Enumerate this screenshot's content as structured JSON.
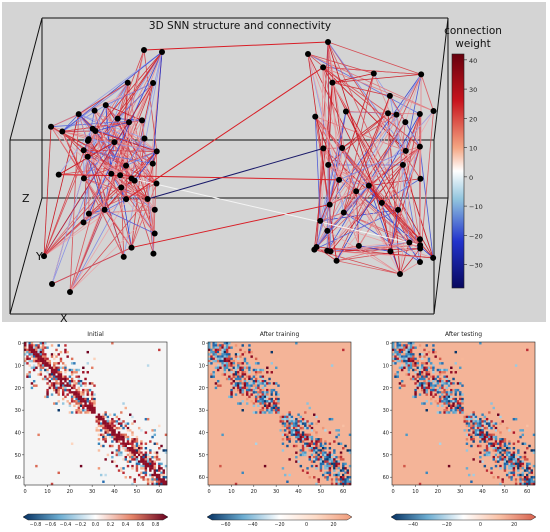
{
  "title": "3D SNN structure and connectivity",
  "colorbar_title": [
    "connection",
    "weight"
  ],
  "axis_letters": {
    "x": "X",
    "y": "Y",
    "z": "Z"
  },
  "colors": {
    "panel_bg": "#d4d4d4",
    "neuron": "#000000",
    "positive": "#c8141e",
    "negative": "#2233cc",
    "neutral": "#ffffff"
  },
  "chart_data": [
    {
      "type": "network-3d",
      "title": "3D SNN structure and connectivity",
      "colorbar": {
        "label": "connection weight",
        "range": [
          -38,
          42
        ],
        "ticks": [
          40,
          30,
          20,
          10,
          0,
          -10,
          -20,
          -30
        ]
      },
      "modules": 2
    },
    {
      "type": "heatmap",
      "title": "Initial",
      "size": 64,
      "xticks": [
        0,
        10,
        20,
        30,
        40,
        50,
        60
      ],
      "yticks": [
        0,
        10,
        20,
        30,
        40,
        50,
        60
      ],
      "colorbar": {
        "range": [
          -0.9,
          0.9
        ],
        "ticks": [
          "−0.8",
          "−0.6",
          "−0.4",
          "−0.2",
          "0.0",
          "0.2",
          "0.4",
          "0.6",
          "0.8"
        ]
      }
    },
    {
      "type": "heatmap",
      "title": "After training",
      "size": 64,
      "xticks": [
        0,
        10,
        20,
        30,
        40,
        50,
        60
      ],
      "yticks": [
        0,
        10,
        20,
        30,
        40,
        50,
        60
      ],
      "colorbar": {
        "range": [
          -70,
          30
        ],
        "ticks": [
          "−60",
          "−40",
          "−20",
          "0",
          "20"
        ]
      }
    },
    {
      "type": "heatmap",
      "title": "After testing",
      "size": 64,
      "xticks": [
        0,
        10,
        20,
        30,
        40,
        50,
        60
      ],
      "yticks": [
        0,
        10,
        20,
        30,
        40,
        50,
        60
      ],
      "colorbar": {
        "range": [
          -50,
          30
        ],
        "ticks": [
          "−40",
          "−20",
          "0",
          "20"
        ]
      }
    }
  ]
}
